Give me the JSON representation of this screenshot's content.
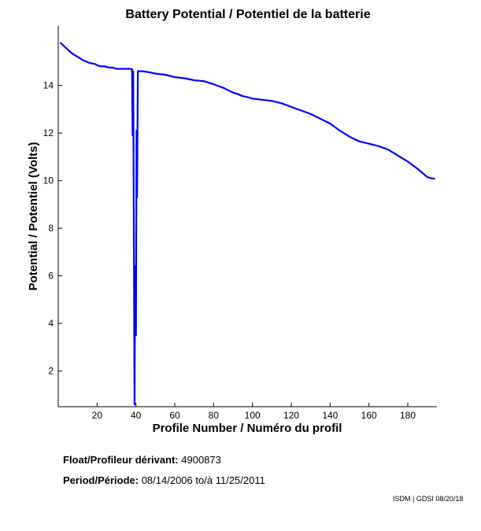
{
  "chart_data": {
    "type": "line",
    "title": "Battery Potential / Potentiel de la batterie",
    "xlabel": "Profile Number / Numéro du profil",
    "ylabel": "Potential / Potentiel (Volts)",
    "xlim": [
      0,
      195
    ],
    "ylim": [
      0.5,
      16.5
    ],
    "xticks": [
      20,
      40,
      60,
      80,
      100,
      120,
      140,
      160,
      180
    ],
    "yticks": [
      2,
      4,
      6,
      8,
      10,
      12,
      14
    ],
    "grid": false,
    "color": "#0000ff",
    "series": [
      {
        "x": [
          1,
          3,
          5,
          7,
          10,
          13,
          16,
          19,
          20,
          22,
          24,
          26,
          28,
          30,
          32,
          34,
          36,
          37,
          38,
          38.3,
          38.6,
          39,
          39.3,
          39.6,
          40,
          40.3,
          40.6,
          41,
          43,
          45,
          47,
          50,
          55,
          60,
          65,
          70,
          75,
          80,
          85,
          88,
          90,
          92,
          95,
          98,
          100,
          105,
          110,
          115,
          120,
          125,
          130,
          135,
          140,
          145,
          150,
          155,
          160,
          165,
          170,
          175,
          180,
          185,
          190,
          192,
          194
        ],
        "y": [
          15.8,
          15.65,
          15.5,
          15.35,
          15.2,
          15.05,
          14.95,
          14.9,
          14.85,
          14.8,
          14.8,
          14.75,
          14.75,
          14.7,
          14.7,
          14.7,
          14.7,
          14.7,
          14.68,
          11.9,
          14.6,
          6.2,
          0.6,
          6.4,
          3.5,
          12.1,
          9.3,
          14.6,
          14.6,
          14.58,
          14.55,
          14.5,
          14.45,
          14.35,
          14.3,
          14.22,
          14.18,
          14.05,
          13.9,
          13.78,
          13.7,
          13.65,
          13.55,
          13.5,
          13.45,
          13.4,
          13.35,
          13.25,
          13.1,
          12.95,
          12.8,
          12.6,
          12.4,
          12.1,
          11.85,
          11.65,
          11.55,
          11.45,
          11.3,
          11.05,
          10.8,
          10.5,
          10.15,
          10.1,
          10.08
        ]
      }
    ]
  },
  "info": {
    "float_label": "Float/Profileur dérivant:",
    "float_value": "4900873",
    "period_label": "Period/Période:",
    "period_start": "08/14/2006",
    "period_sep": "to/à",
    "period_end": "11/25/2011"
  },
  "credit": "ISDM | GDSI 08/20/18"
}
